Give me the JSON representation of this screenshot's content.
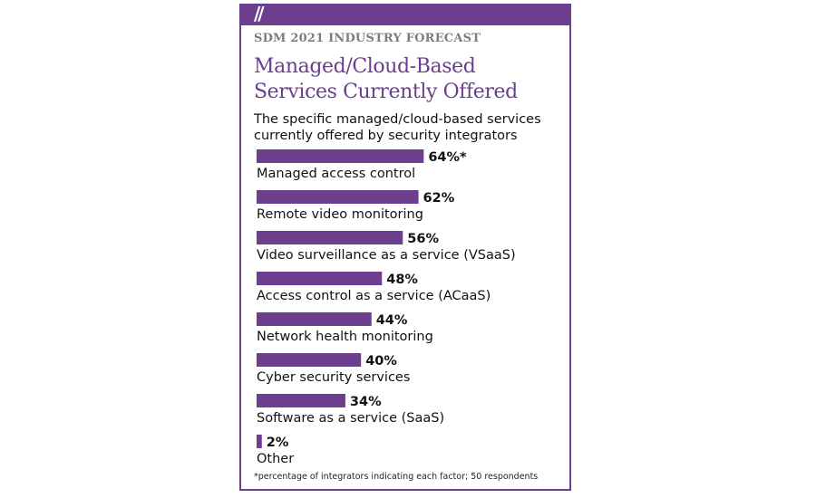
{
  "header": {
    "slashes": "//",
    "kicker": "SDM 2021 INDUSTRY FORECAST",
    "title_lines": [
      "Managed/Cloud-Based",
      "Services Currently Offered"
    ],
    "subtitle_lines": [
      "The specific managed/cloud-based services",
      "currently offered by security integrators"
    ]
  },
  "chart_data": {
    "type": "bar",
    "orientation": "horizontal",
    "categories": [
      "Managed access control",
      "Remote video monitoring",
      "Video surveillance as a service (VSaaS)",
      "Access control as a service (ACaaS)",
      "Network health monitoring",
      "Cyber security services",
      "Software as a service (SaaS)",
      "Other"
    ],
    "values": [
      64,
      62,
      56,
      48,
      44,
      40,
      34,
      2
    ],
    "value_labels": [
      "64%*",
      "62%",
      "56%",
      "48%",
      "44%",
      "40%",
      "34%",
      "2%"
    ],
    "unit": "%",
    "xlim": [
      0,
      100
    ],
    "bar_color": "#6b3e8e",
    "grid": false,
    "legend": "none"
  },
  "footnote": "*percentage of integrators indicating each factor; 50 respondents",
  "colors": {
    "accent": "#6b3e8e",
    "kicker": "#7d7d7d",
    "text": "#111111"
  }
}
